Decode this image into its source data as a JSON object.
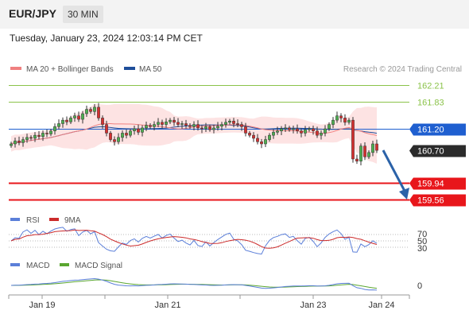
{
  "header": {
    "pair": "EUR/JPY",
    "timeframe": "30 MIN",
    "datetime": "Tuesday, January 23, 2024 12:03:14 PM CET"
  },
  "legend": {
    "ma20": "MA 20 + Bollinger Bands",
    "ma50": "MA 50",
    "copyright": "Research © 2024 Trading Central",
    "rsi": "RSI",
    "rsi_ma": "9MA",
    "macd": "MACD",
    "macd_signal": "MACD Signal"
  },
  "colors": {
    "ma20": "#f08080",
    "ma50": "#1f4e9a",
    "band": "#fde3e3",
    "level_green": "#8bc34a",
    "level_red": "#e8161b",
    "level_blue": "#1f5fd0",
    "current": "#2b2b2b",
    "arrow": "#2b62a8",
    "rsi": "#5b7fd9",
    "rsi_ma": "#cc2b2b",
    "macd": "#5b7fd9",
    "macd_signal": "#5aa630",
    "candle_up": "#4caf50",
    "candle_down": "#d32f2f"
  },
  "chart_data": {
    "type": "candlestick",
    "levels": [
      {
        "value": 162.21,
        "label": "162.21",
        "kind": "resistance"
      },
      {
        "value": 161.83,
        "label": "161.83",
        "kind": "resistance"
      },
      {
        "value": 161.2,
        "label": "161.20",
        "kind": "pivot"
      },
      {
        "value": 160.7,
        "label": "160.70",
        "kind": "current"
      },
      {
        "value": 159.94,
        "label": "159.94",
        "kind": "support"
      },
      {
        "value": 159.56,
        "label": "159.56",
        "kind": "support"
      }
    ],
    "x_ticks": [
      "Jan 19",
      "Jan 21",
      "Jan 23",
      "Jan 24"
    ],
    "rsi_ticks": [
      "70",
      "50",
      "30"
    ],
    "macd_ticks": [
      "0"
    ],
    "ylim": [
      159.3,
      162.5
    ],
    "closes": [
      160.85,
      160.92,
      160.88,
      160.95,
      161.0,
      160.98,
      161.05,
      161.02,
      161.1,
      161.08,
      161.15,
      161.25,
      161.32,
      161.4,
      161.36,
      161.45,
      161.5,
      161.42,
      161.55,
      161.65,
      161.6,
      161.7,
      161.45,
      161.3,
      161.1,
      160.95,
      160.9,
      161.0,
      161.1,
      161.05,
      161.15,
      161.2,
      161.12,
      161.22,
      161.28,
      161.25,
      161.3,
      161.35,
      161.3,
      161.36,
      161.4,
      161.35,
      161.3,
      161.32,
      161.28,
      161.25,
      161.3,
      161.22,
      161.2,
      161.25,
      161.18,
      161.22,
      161.26,
      161.3,
      161.35,
      161.38,
      161.32,
      161.3,
      161.25,
      161.1,
      161.05,
      160.98,
      160.9,
      160.85,
      160.95,
      161.05,
      161.12,
      161.15,
      161.2,
      161.22,
      161.18,
      161.2,
      161.15,
      161.1,
      161.18,
      161.2,
      161.15,
      161.05,
      161.1,
      161.2,
      161.3,
      161.4,
      161.5,
      161.45,
      161.35,
      161.4,
      160.5,
      160.45,
      160.8,
      160.55,
      160.65,
      160.85,
      160.7
    ]
  }
}
